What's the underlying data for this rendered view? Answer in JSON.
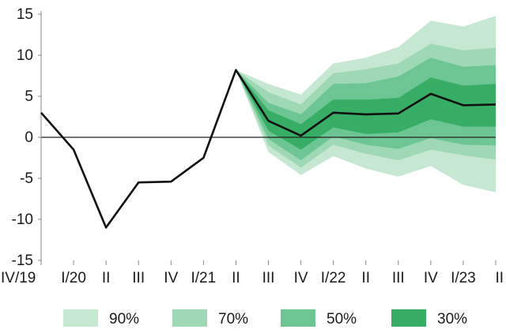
{
  "chart_data": {
    "type": "area",
    "title": "",
    "xlabel": "",
    "ylabel": "",
    "ylim": [
      -15,
      15
    ],
    "yticks": [
      15,
      10,
      5,
      0,
      -5,
      -10,
      -15
    ],
    "yticks_labels": [
      "15",
      "10",
      "5",
      "0",
      "-5",
      "-10",
      "-15"
    ],
    "categories": [
      "IV/19",
      "I/20",
      "II",
      "III",
      "IV",
      "I/21",
      "II",
      "III",
      "IV",
      "I/22",
      "II",
      "III",
      "IV",
      "I/23",
      "II"
    ],
    "series": [
      {
        "name": "central",
        "values": [
          3.0,
          -1.5,
          -11.0,
          -5.5,
          -5.4,
          -2.5,
          8.2,
          2.0,
          0.2,
          3.0,
          2.8,
          2.9,
          5.3,
          3.9,
          4.0
        ]
      }
    ],
    "fan_start_index": 6,
    "bands": [
      {
        "name": "90%",
        "color": "#c6e8d3",
        "upper": [
          8.2,
          6.5,
          5.2,
          9.0,
          9.7,
          11.0,
          14.2,
          13.5,
          14.8
        ],
        "lower": [
          8.2,
          -1.8,
          -4.6,
          -2.3,
          -3.8,
          -4.8,
          -3.5,
          -5.8,
          -6.7
        ]
      },
      {
        "name": "70%",
        "color": "#9fd8b5",
        "upper": [
          8.2,
          5.5,
          4.0,
          7.8,
          8.3,
          9.0,
          11.4,
          10.6,
          10.9
        ],
        "lower": [
          8.2,
          -1.0,
          -3.7,
          -0.9,
          -2.0,
          -2.8,
          -1.5,
          -2.2,
          -2.7
        ]
      },
      {
        "name": "50%",
        "color": "#6cc593",
        "upper": [
          8.2,
          4.2,
          2.8,
          6.5,
          6.6,
          7.4,
          9.7,
          8.6,
          8.8
        ],
        "lower": [
          8.2,
          -0.2,
          -2.8,
          0.1,
          -0.9,
          -1.4,
          -0.1,
          -0.9,
          -1.0
        ]
      },
      {
        "name": "30%",
        "color": "#38ad65",
        "upper": [
          8.2,
          3.3,
          1.6,
          4.6,
          4.6,
          4.8,
          7.3,
          6.3,
          6.5
        ],
        "lower": [
          8.2,
          0.8,
          -1.5,
          1.2,
          0.4,
          0.6,
          2.2,
          1.3,
          1.3
        ]
      }
    ],
    "legend": [
      {
        "label": "90%",
        "color": "#c6e8d3"
      },
      {
        "label": "70%",
        "color": "#9fd8b5"
      },
      {
        "label": "50%",
        "color": "#6cc593"
      },
      {
        "label": "30%",
        "color": "#38ad65"
      }
    ],
    "legend_position": "bottom",
    "grid": false,
    "colors": {
      "line": "#111111",
      "zero_line": "#222222",
      "axis": "#888888",
      "text": "#1a1a1a"
    }
  }
}
